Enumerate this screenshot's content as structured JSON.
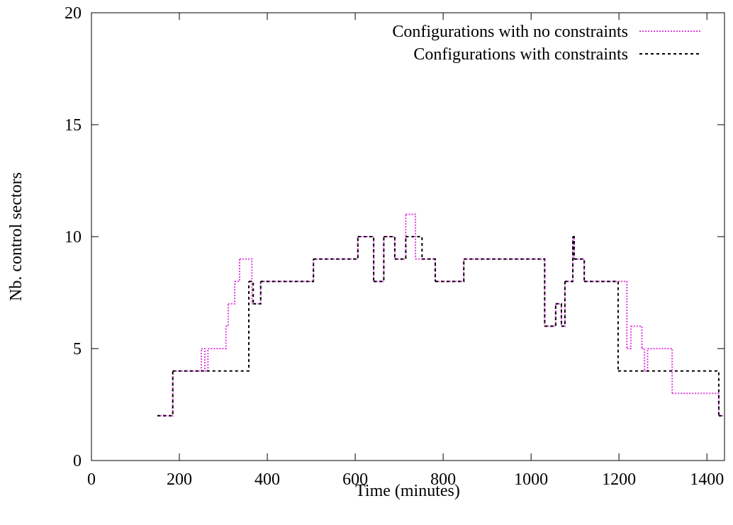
{
  "chart_data": {
    "type": "step",
    "xlabel": "Time (minutes)",
    "ylabel": "Nb. control sectors",
    "xlim": [
      0,
      1440
    ],
    "xticks": [
      0,
      200,
      400,
      600,
      800,
      1000,
      1200,
      1400
    ],
    "ylim": [
      0,
      20
    ],
    "yticks": [
      0,
      5,
      10,
      15,
      20
    ],
    "legend": "upper right",
    "series": [
      {
        "name": "Configurations with no constraints",
        "color": "#e040e0",
        "dash": "2,2",
        "x": [
          150,
          185,
          250,
          258,
          265,
          306,
          311,
          326,
          337,
          365,
          385,
          505,
          606,
          642,
          665,
          690,
          715,
          737,
          782,
          847,
          1031,
          1056,
          1069,
          1077,
          1095,
          1098,
          1121,
          1218,
          1227,
          1252,
          1258,
          1265,
          1321,
          1427,
          1437
        ],
        "values": [
          2,
          4,
          5,
          4,
          5,
          6,
          7,
          8,
          9,
          7,
          8,
          9,
          10,
          8,
          10,
          9,
          11,
          9,
          8,
          9,
          6,
          7,
          6,
          8,
          10,
          9,
          8,
          5,
          6,
          5,
          4,
          5,
          3,
          2,
          2
        ]
      },
      {
        "name": "Configurations with constraints",
        "color": "#000000",
        "dash": "4,4",
        "x": [
          150,
          185,
          358,
          368,
          385,
          505,
          606,
          642,
          665,
          690,
          715,
          752,
          782,
          847,
          1031,
          1056,
          1069,
          1077,
          1095,
          1098,
          1121,
          1198,
          1427,
          1437
        ],
        "values": [
          2,
          4,
          8,
          7,
          8,
          9,
          10,
          8,
          10,
          9,
          10,
          9,
          8,
          9,
          6,
          7,
          6,
          8,
          10,
          9,
          8,
          4,
          2,
          2
        ]
      }
    ]
  }
}
